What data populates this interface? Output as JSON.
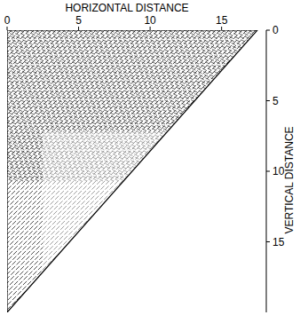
{
  "chart_data": {
    "type": "area",
    "x_label": "HORIZONTAL DISTANCE",
    "y_label": "VERTICAL DISTANCE",
    "x": [
      0,
      17.5,
      0
    ],
    "values": [
      0,
      0,
      20
    ],
    "color": "#000000",
    "xlim": [
      0,
      18
    ],
    "ylim": [
      0,
      20
    ],
    "xticks": [
      0,
      5,
      10,
      15
    ],
    "yticks": [
      0,
      5,
      10,
      15
    ],
    "grid": false
  }
}
